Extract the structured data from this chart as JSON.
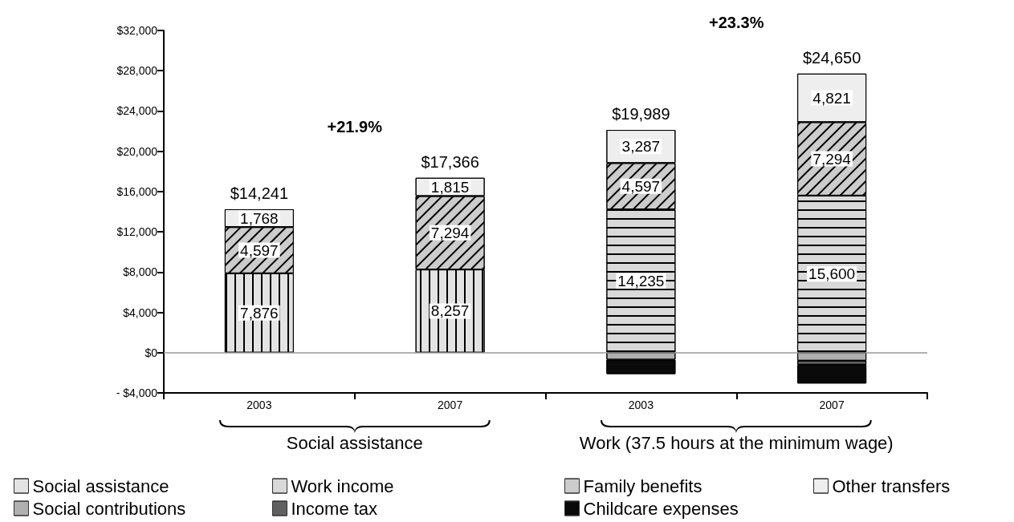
{
  "chart_data": {
    "type": "bar",
    "stacked": true,
    "categories": [
      "2003",
      "2007",
      "2003",
      "2007"
    ],
    "series": [
      {
        "name": "Social assistance",
        "color": "#e3e3e3",
        "values": [
          7876,
          8257,
          null,
          null
        ],
        "value_labels": [
          "7,876",
          "8,257",
          null,
          null
        ]
      },
      {
        "name": "Work income",
        "color": "#d9d9d9",
        "values": [
          null,
          null,
          14235,
          15600
        ],
        "value_labels": [
          null,
          null,
          "14,235",
          "15,600"
        ]
      },
      {
        "name": "Family benefits",
        "color": "#cccccc",
        "values": [
          4597,
          7294,
          4597,
          7294
        ],
        "value_labels": [
          "4,597",
          "7,294",
          "4,597",
          "7,294"
        ]
      },
      {
        "name": "Other transfers",
        "color": "#eeeeee",
        "values": [
          1768,
          1815,
          3287,
          4821
        ],
        "value_labels": [
          "1,768",
          "1,815",
          "3,287",
          "4,821"
        ]
      },
      {
        "name": "Social contributions",
        "color": "#b0b0b0",
        "values": [
          null,
          null,
          -700,
          -800
        ]
      },
      {
        "name": "Income tax",
        "color": "#606060",
        "values": [
          null,
          null,
          null,
          -400
        ]
      },
      {
        "name": "Childcare expenses",
        "color": "#0a0a0a",
        "values": [
          null,
          null,
          -1430,
          -1865
        ]
      }
    ],
    "totals": [
      "$14,241",
      "$17,366",
      "$19,989",
      "$24,650"
    ],
    "annotations": [
      "+21.9%",
      "+23.3%",
      "Social assistance",
      "Work (37.5 hours at the minimum wage)"
    ],
    "ylim": [
      -4000,
      32000
    ],
    "yticks": [
      {
        "value": -4000,
        "label": "- $4,000"
      },
      {
        "value": 0,
        "label": "$0"
      },
      {
        "value": 4000,
        "label": "$4,000"
      },
      {
        "value": 8000,
        "label": "$8,000"
      },
      {
        "value": 12000,
        "label": "$12,000"
      },
      {
        "value": 16000,
        "label": "$16,000"
      },
      {
        "value": 20000,
        "label": "$20,000"
      },
      {
        "value": 24000,
        "label": "$24,000"
      },
      {
        "value": 28000,
        "label": "$28,000"
      },
      {
        "value": 32000,
        "label": "$32,000"
      }
    ],
    "ref_lines": [
      {
        "axis": "y",
        "value": 0,
        "color": "#999999"
      }
    ],
    "grid": false,
    "legend": "bottom"
  }
}
